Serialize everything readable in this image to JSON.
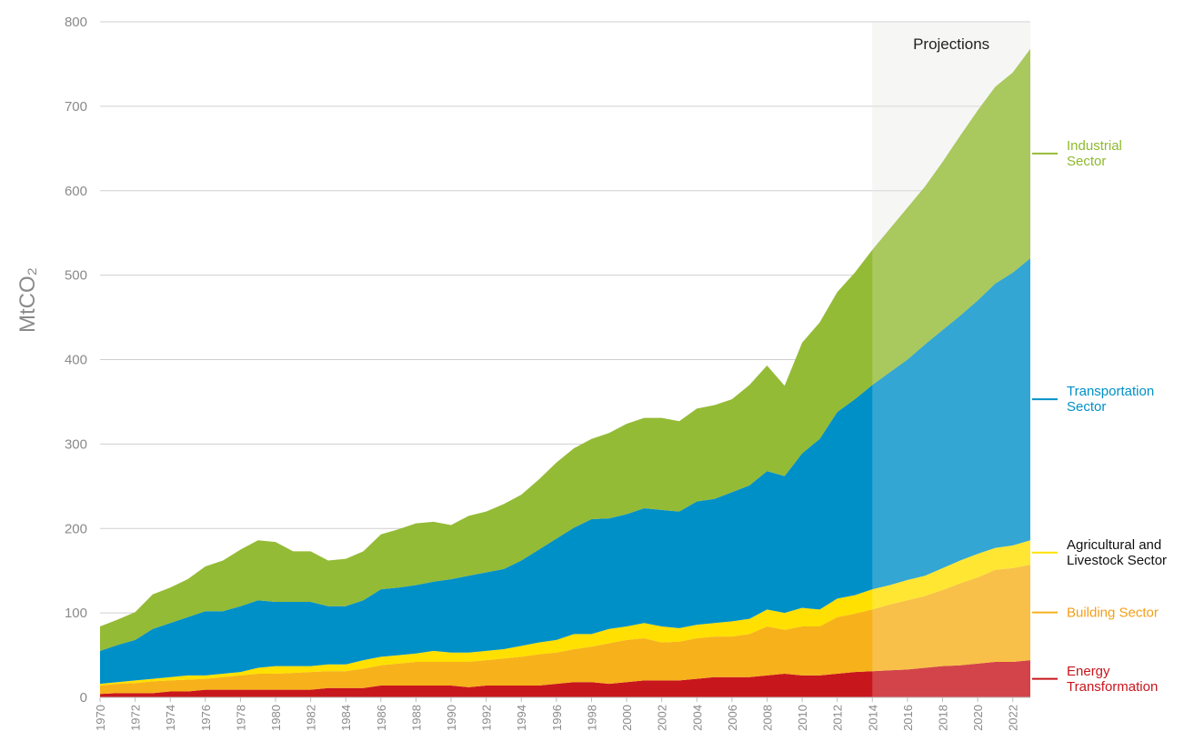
{
  "chart_data": {
    "type": "stacked_area",
    "y_label": "MtCO₂",
    "x": [
      1970,
      1971,
      1972,
      1973,
      1974,
      1975,
      1976,
      1977,
      1978,
      1979,
      1980,
      1981,
      1982,
      1983,
      1984,
      1985,
      1986,
      1987,
      1988,
      1989,
      1990,
      1991,
      1992,
      1993,
      1994,
      1995,
      1996,
      1997,
      1998,
      1999,
      2000,
      2001,
      2002,
      2003,
      2004,
      2005,
      2006,
      2007,
      2008,
      2009,
      2010,
      2011,
      2012,
      2013,
      2014,
      2015,
      2016,
      2017,
      2018,
      2019,
      2020,
      2021,
      2022,
      2023
    ],
    "xlim": [
      1970,
      2023
    ],
    "xticks": [
      1970,
      1972,
      1974,
      1976,
      1978,
      1980,
      1982,
      1984,
      1986,
      1988,
      1990,
      1992,
      1994,
      1996,
      1998,
      2000,
      2002,
      2004,
      2006,
      2008,
      2010,
      2012,
      2014,
      2016,
      2018,
      2020,
      2022
    ],
    "ylim": [
      0,
      800
    ],
    "yticks": [
      0,
      100,
      200,
      300,
      400,
      500,
      600,
      700,
      800
    ],
    "grid": true,
    "shaded_region": {
      "label": "Projections",
      "xlim": [
        2014,
        2023
      ],
      "color": "#ececea"
    },
    "series": [
      {
        "name": "Energy Transformation",
        "color": "#c8161d",
        "label_color": "#c8161d",
        "values": [
          4,
          5,
          5,
          5,
          7,
          7,
          9,
          9,
          9,
          9,
          9,
          9,
          9,
          11,
          11,
          11,
          14,
          14,
          14,
          14,
          14,
          12,
          14,
          14,
          14,
          14,
          16,
          18,
          18,
          16,
          18,
          20,
          20,
          20,
          22,
          24,
          24,
          24,
          26,
          28,
          26,
          26,
          28,
          30,
          31,
          32,
          33,
          35,
          37,
          38,
          40,
          42,
          42,
          44
        ]
      },
      {
        "name": "Building Sector",
        "color": "#f7b11b",
        "label_color": "#f2a01a",
        "values": [
          10,
          11,
          12,
          14,
          13,
          14,
          13,
          15,
          17,
          19,
          19,
          20,
          21,
          20,
          20,
          23,
          24,
          26,
          28,
          28,
          28,
          30,
          30,
          32,
          34,
          37,
          37,
          39,
          42,
          48,
          50,
          50,
          45,
          46,
          48,
          48,
          48,
          51,
          58,
          52,
          58,
          58,
          67,
          69,
          73,
          78,
          82,
          85,
          90,
          97,
          102,
          109,
          111,
          113
        ]
      },
      {
        "name": "Agricultural and Livestock Sector",
        "color": "#ffe000",
        "label_color": "#111111",
        "values": [
          2,
          2,
          3,
          3,
          4,
          5,
          4,
          4,
          4,
          7,
          9,
          8,
          7,
          8,
          8,
          10,
          10,
          10,
          10,
          13,
          11,
          11,
          11,
          11,
          13,
          14,
          15,
          18,
          15,
          17,
          16,
          18,
          19,
          16,
          16,
          16,
          18,
          18,
          20,
          20,
          22,
          20,
          22,
          22,
          24,
          23,
          24,
          24,
          26,
          27,
          28,
          26,
          27,
          29
        ]
      },
      {
        "name": "Transportation Sector",
        "color": "#0090c8",
        "label_color": "#0090c8",
        "values": [
          39,
          44,
          48,
          59,
          64,
          69,
          76,
          74,
          78,
          80,
          76,
          76,
          76,
          69,
          69,
          71,
          80,
          80,
          81,
          82,
          87,
          91,
          93,
          95,
          101,
          110,
          120,
          126,
          136,
          131,
          133,
          136,
          138,
          138,
          146,
          147,
          153,
          158,
          164,
          162,
          183,
          202,
          221,
          232,
          242,
          252,
          261,
          274,
          282,
          290,
          300,
          313,
          323,
          334
        ]
      },
      {
        "name": "Industrial Sector",
        "color": "#94bb35",
        "label_color": "#8fba2e",
        "values": [
          29,
          30,
          33,
          41,
          42,
          45,
          53,
          60,
          67,
          71,
          71,
          60,
          60,
          54,
          56,
          58,
          65,
          69,
          73,
          71,
          64,
          71,
          72,
          77,
          78,
          83,
          90,
          94,
          95,
          101,
          107,
          107,
          109,
          107,
          110,
          111,
          110,
          119,
          125,
          107,
          131,
          138,
          142,
          150,
          160,
          170,
          180,
          187,
          199,
          213,
          225,
          233,
          237,
          248
        ]
      }
    ]
  }
}
